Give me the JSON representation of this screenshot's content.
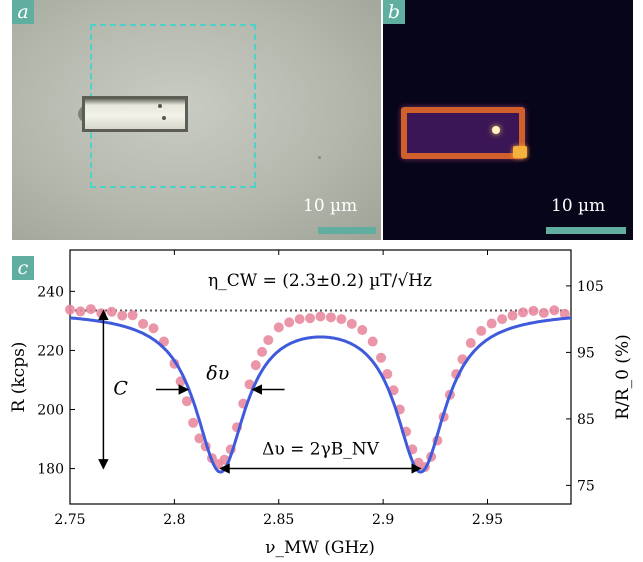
{
  "panel_a": {
    "letter": "a",
    "scale_label": "10 µm"
  },
  "panel_b": {
    "letter": "b",
    "scale_label": "10 µm"
  },
  "panel_c": {
    "letter": "c",
    "sensitivity_label": "η_CW = (2.3±0.2) µT/√Hz",
    "delta_nu_label": "δυ",
    "delta_big_label": "Δυ = 2γB_NV",
    "contrast_label": "C"
  },
  "chart_data": {
    "type": "scatter",
    "title": "",
    "xlabel": "ν_MW (GHz)",
    "ylabel": "R (kcps)",
    "y2label": "R/R_0 (%)",
    "xlim": [
      2.75,
      2.99
    ],
    "ylim": [
      168,
      254
    ],
    "y2lim": [
      72.2,
      110.4
    ],
    "xticks": [
      2.75,
      2.8,
      2.85,
      2.9,
      2.95
    ],
    "yticks": [
      180,
      200,
      220,
      240
    ],
    "y2ticks": [
      75,
      85,
      95,
      105
    ],
    "grid": false,
    "baseline_level": 233.5,
    "fit_model": {
      "baseline": 233.5,
      "dips": [
        {
          "center": 2.822,
          "depth": 53.5,
          "hwhm": 0.0145
        },
        {
          "center": 2.918,
          "depth": 53.5,
          "hwhm": 0.0145
        }
      ]
    },
    "series": [
      {
        "name": "",
        "style": "markers",
        "color": "#e98aa0",
        "x": [
          2.75,
          2.755,
          2.76,
          2.765,
          2.77,
          2.775,
          2.78,
          2.785,
          2.79,
          2.795,
          2.8,
          2.803,
          2.806,
          2.809,
          2.812,
          2.815,
          2.818,
          2.821,
          2.824,
          2.827,
          2.83,
          2.833,
          2.836,
          2.839,
          2.842,
          2.845,
          2.85,
          2.855,
          2.86,
          2.865,
          2.87,
          2.875,
          2.88,
          2.885,
          2.89,
          2.895,
          2.899,
          2.902,
          2.905,
          2.908,
          2.911,
          2.914,
          2.917,
          2.92,
          2.923,
          2.926,
          2.929,
          2.932,
          2.935,
          2.938,
          2.942,
          2.947,
          2.952,
          2.957,
          2.962,
          2.967,
          2.972,
          2.977,
          2.982,
          2.987
        ],
        "y": [
          233.8,
          233.2,
          234.0,
          232.6,
          233.1,
          231.8,
          231.9,
          229.0,
          227.5,
          223.0,
          215.5,
          209.5,
          202.8,
          195.5,
          190.2,
          187.5,
          183.5,
          181.5,
          183.0,
          186.5,
          194.0,
          202.0,
          208.5,
          215.0,
          219.5,
          223.5,
          227.8,
          229.5,
          230.6,
          230.9,
          231.5,
          231.2,
          230.6,
          229.0,
          226.9,
          223.0,
          217.5,
          212.0,
          206.5,
          200.0,
          192.5,
          186.5,
          182.0,
          180.5,
          184.0,
          189.5,
          197.5,
          205.0,
          212.0,
          217.0,
          222.5,
          226.6,
          229.1,
          230.6,
          231.8,
          232.9,
          233.4,
          232.7,
          233.6,
          232.4
        ]
      },
      {
        "name": "",
        "style": "line",
        "color": "#3f5bdb"
      }
    ]
  }
}
